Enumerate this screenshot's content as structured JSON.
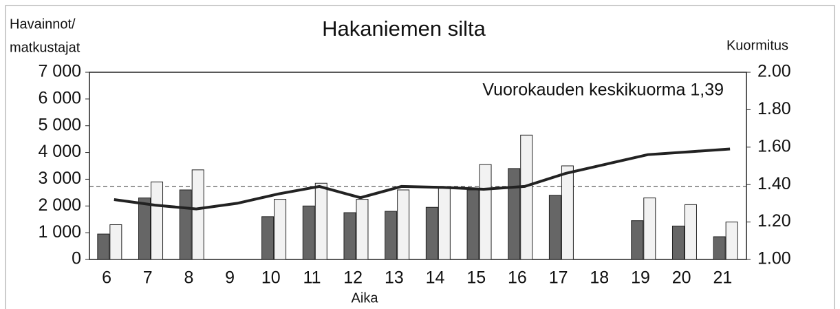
{
  "chart_data": {
    "type": "bar",
    "title": "Hakaniemen silta",
    "ylabel": [
      "Havainnot/",
      "matkustajat"
    ],
    "y2label": "Kuormitus",
    "xlabel": "Aika",
    "annotation": "Vuorokauden keskikuorma 1,39",
    "reference_line": {
      "value": 1.39,
      "axis": "y2",
      "style": "dashed"
    },
    "categories": [
      "6",
      "7",
      "8",
      "9",
      "10",
      "11",
      "12",
      "13",
      "14",
      "15",
      "16",
      "17",
      "18",
      "19",
      "20",
      "21"
    ],
    "series": [
      {
        "color": "#666666",
        "values": [
          950,
          2300,
          2600,
          null,
          1600,
          2000,
          1750,
          1800,
          1950,
          2600,
          3400,
          2400,
          null,
          1450,
          1250,
          850
        ]
      },
      {
        "color": "#f2f2f2",
        "values": [
          1300,
          2900,
          3350,
          null,
          2250,
          2850,
          2250,
          2600,
          2700,
          3550,
          4650,
          3500,
          null,
          2300,
          2050,
          1400
        ]
      },
      {
        "color": "#222222",
        "axis": "y2",
        "values": [
          1.32,
          1.29,
          1.27,
          1.3,
          1.35,
          1.39,
          1.33,
          1.39,
          1.385,
          1.375,
          1.39,
          1.46,
          1.51,
          1.56,
          1.575,
          1.59
        ]
      }
    ],
    "ylim": [
      0,
      7000
    ],
    "yticks": [
      0,
      {
        "value": 1000,
        "label": "1 000"
      },
      {
        "value": 2000,
        "label": "2 000"
      },
      {
        "value": 3000,
        "label": "3 000"
      },
      {
        "value": 4000,
        "label": "4 000"
      },
      {
        "value": 5000,
        "label": "5 000"
      },
      {
        "value": 6000,
        "label": "6 000"
      },
      {
        "value": 7000,
        "label": "7 000"
      }
    ],
    "y2lim": [
      1,
      2
    ],
    "y2ticks": [
      {
        "value": 1,
        "label": "1.00"
      },
      {
        "value": 1.2,
        "label": "1.20"
      },
      {
        "value": 1.4,
        "label": "1.40"
      },
      {
        "value": 1.6,
        "label": "1.60"
      },
      {
        "value": 1.8,
        "label": "1.80"
      },
      {
        "value": 2,
        "label": "2.00"
      }
    ],
    "grid": false
  }
}
